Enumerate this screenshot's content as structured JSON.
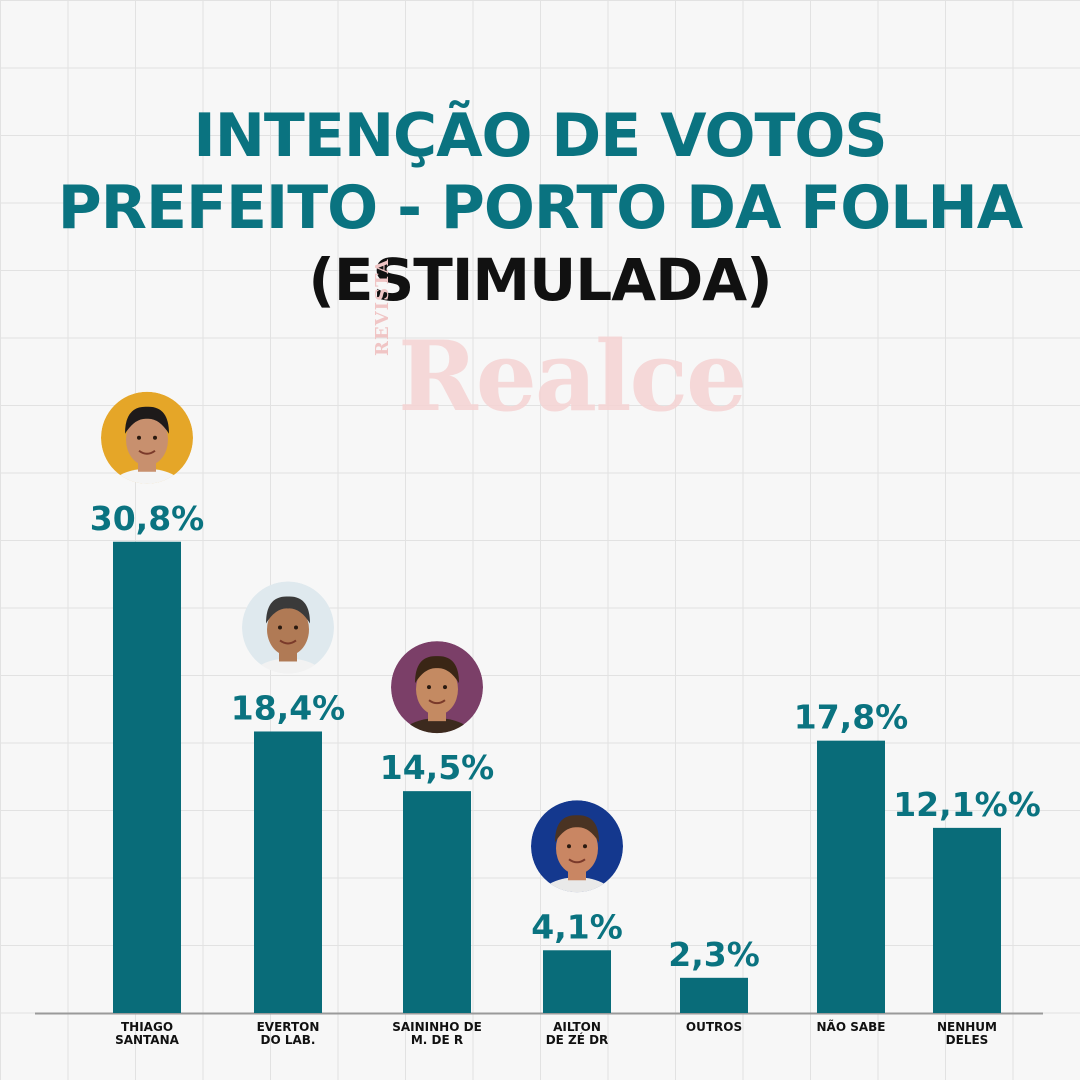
{
  "header": {
    "title_line1": "INTENÇÃO DE VOTOS",
    "title_line2": "PREFEITO - PORTO DA FOLHA",
    "subtitle": "(ESTIMULADA)"
  },
  "watermark": {
    "small": "REVISTA",
    "big": "Realce"
  },
  "colors": {
    "bar": "#096c79",
    "value_label": "#0a7380",
    "category_label": "#111111",
    "baseline": "#9a9a9a"
  },
  "chart_data": {
    "type": "bar",
    "title": "INTENÇÃO DE VOTOS PREFEITO - PORTO DA FOLHA (ESTIMULADA)",
    "categories": [
      [
        "THIAGO",
        "SANTANA"
      ],
      [
        "EVERTON",
        "DO LAB."
      ],
      [
        "SAININHO DE",
        "M. DE R"
      ],
      [
        "AILTON",
        "DE ZÉ DR"
      ],
      [
        "OUTROS"
      ],
      [
        "NÃO SABE"
      ],
      [
        "NENHUM",
        "DELES"
      ]
    ],
    "values": [
      30.8,
      18.4,
      14.5,
      4.1,
      2.3,
      17.8,
      12.1
    ],
    "value_labels": [
      "30,8%",
      "18,4%",
      "14,5%",
      "4,1%",
      "2,3%",
      "17,8%",
      "12,1%%"
    ],
    "photos": [
      true,
      true,
      true,
      true,
      false,
      false,
      false
    ],
    "photo_colors": [
      {
        "bg": "#e5a628",
        "skin": "#c8906e",
        "hair": "#1e1a1a",
        "shirt": "#f4f4f4"
      },
      {
        "bg": "#dfe9ee",
        "skin": "#b07a55",
        "hair": "#3a3a3a",
        "shirt": "#f2f2f2"
      },
      {
        "bg": "#7b3f68",
        "skin": "#c48a62",
        "hair": "#3a2615",
        "shirt": "#3c2a1e"
      },
      {
        "bg": "#14388e",
        "skin": "#c98663",
        "hair": "#4a3323",
        "shirt": "#e9e9e9"
      }
    ],
    "ylim": [
      0,
      35
    ],
    "grid": true,
    "legend": "none"
  }
}
